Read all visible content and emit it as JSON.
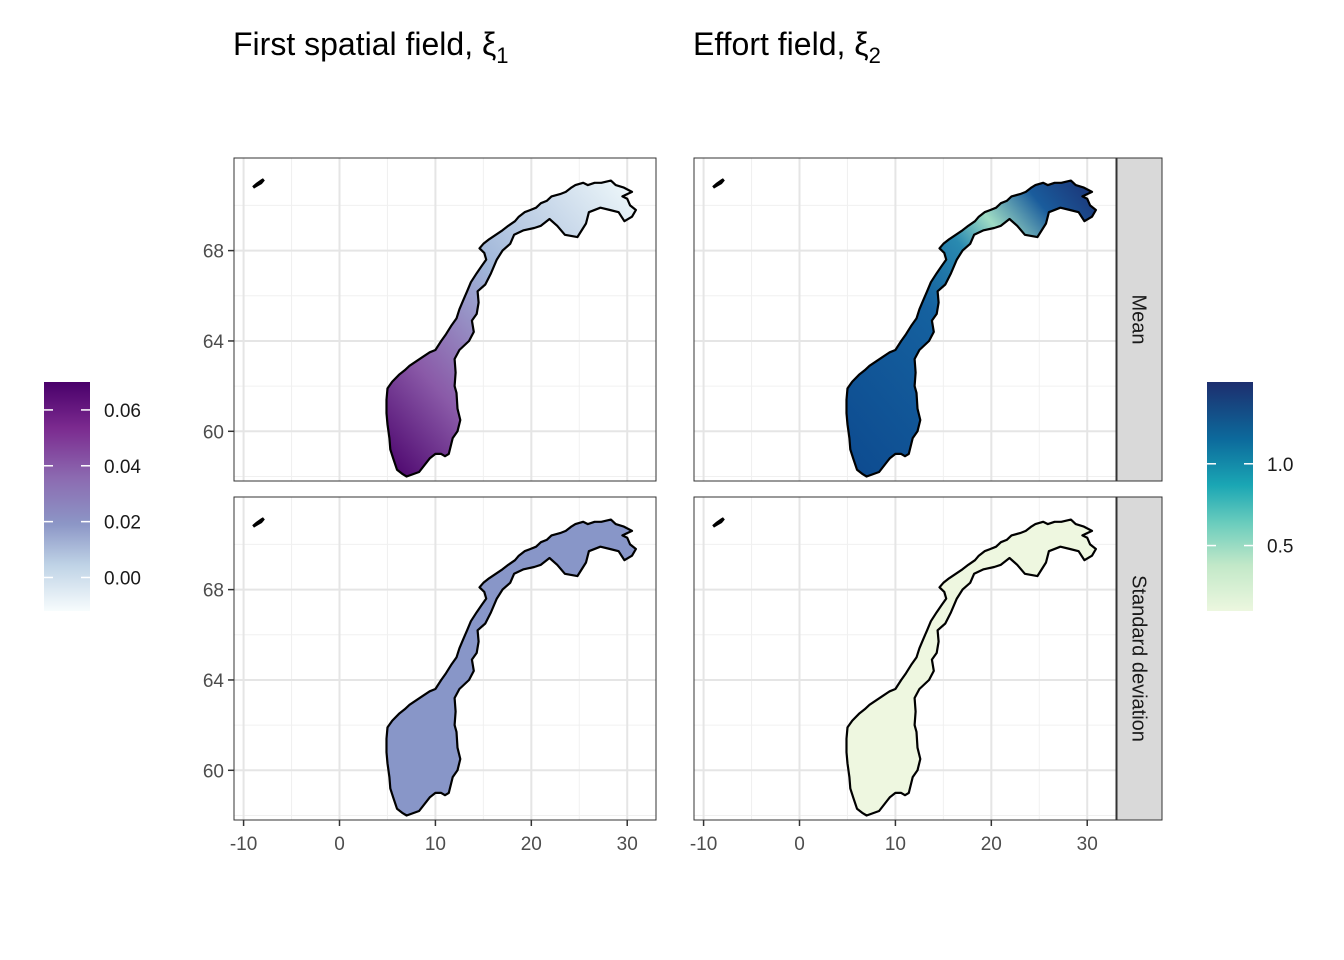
{
  "titles": {
    "left": {
      "main": "First spatial field, ξ",
      "sub": "1"
    },
    "right": {
      "main": "Effort field, ξ",
      "sub": "2"
    }
  },
  "strips": [
    "Mean",
    "Standard deviation"
  ],
  "axes": {
    "x_ticks": [
      "-10",
      "0",
      "10",
      "20",
      "30"
    ],
    "x_tick_values": [
      -10,
      0,
      10,
      20,
      30
    ],
    "y_ticks": [
      "68",
      "64",
      "60"
    ],
    "y_tick_values": [
      68,
      64,
      60
    ],
    "xlim": [
      -11,
      33
    ],
    "ylim": [
      57.8,
      72.1
    ]
  },
  "legends": {
    "left": {
      "labels": [
        "0.06",
        "0.04",
        "0.02",
        "0.00"
      ],
      "values": [
        0.06,
        0.04,
        0.02,
        0.0
      ],
      "range": [
        -0.012,
        0.07
      ],
      "colors": [
        "#49006a",
        "#88419d",
        "#8c96c6",
        "#9ebcda",
        "#e0ecf4",
        "#f7fcfd"
      ]
    },
    "right": {
      "labels": [
        "1.0",
        "0.5"
      ],
      "values": [
        1.0,
        0.5
      ],
      "range": [
        0.1,
        1.5
      ],
      "colors": [
        "#1d2e6e",
        "#0c6a9c",
        "#1aa6b4",
        "#6ccdbd",
        "#c2e8c8",
        "#ecf7df"
      ]
    }
  },
  "panels": [
    {
      "field": "xi1",
      "stat": "Mean",
      "fill": "gradient-purple",
      "colors": [
        "#5a0e6b",
        "#8a5aa8",
        "#9fb5d8",
        "#eaf7f9"
      ]
    },
    {
      "field": "xi2",
      "stat": "Mean",
      "fill": "gradient-blue",
      "colors": [
        "#0d4a8f",
        "#1466a6",
        "#8fd4c0",
        "#1c3f8c"
      ]
    },
    {
      "field": "xi1",
      "stat": "Standard deviation",
      "fill": "flat",
      "colors": [
        "#8896c8"
      ]
    },
    {
      "field": "xi2",
      "stat": "Standard deviation",
      "fill": "flat",
      "colors": [
        "#eef7e0"
      ]
    }
  ]
}
